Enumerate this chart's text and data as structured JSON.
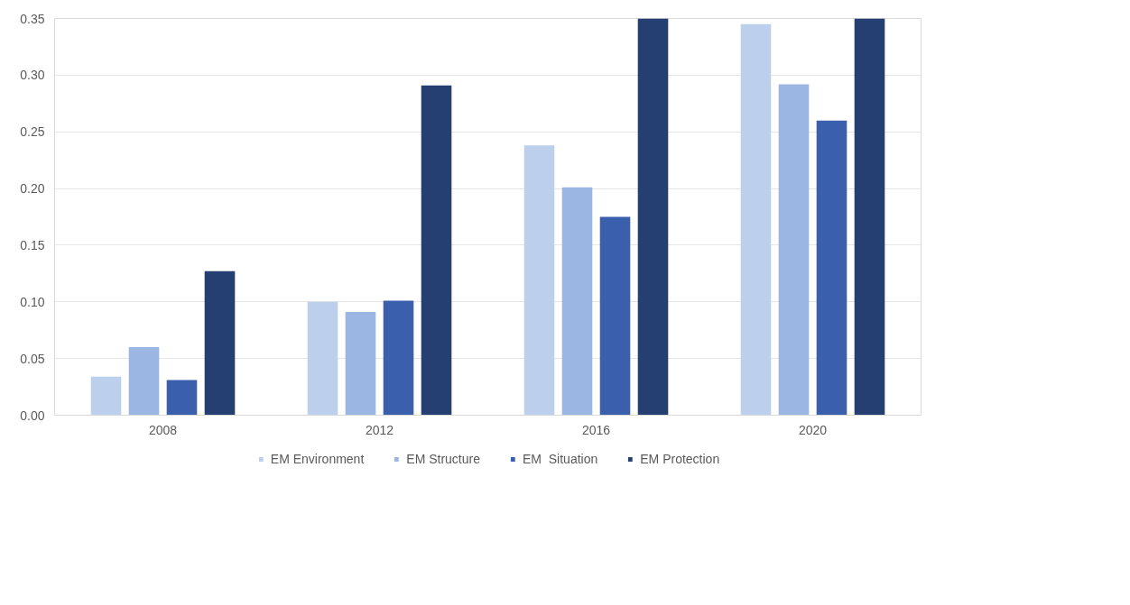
{
  "chart_data": {
    "type": "bar",
    "categories": [
      "2008",
      "2012",
      "2016",
      "2020"
    ],
    "series": [
      {
        "name": "EM Environment",
        "color": "#bccfec",
        "values": [
          0.034,
          0.1,
          0.238,
          0.345
        ]
      },
      {
        "name": "EM Structure",
        "color": "#9bb6e3",
        "values": [
          0.06,
          0.091,
          0.201,
          0.292
        ]
      },
      {
        "name": "EM  Situation",
        "color": "#3a5fad",
        "values": [
          0.031,
          0.101,
          0.175,
          0.26
        ]
      },
      {
        "name": "EM Protection",
        "color": "#253f73",
        "values": [
          0.127,
          0.291,
          0.35,
          0.35
        ]
      }
    ],
    "ylim": [
      0,
      0.35
    ],
    "yticks": [
      {
        "value": 0,
        "label": "0.00"
      },
      {
        "value": 0.05,
        "label": "0.05"
      },
      {
        "value": 0.1,
        "label": "0.10"
      },
      {
        "value": 0.15,
        "label": "0.15"
      },
      {
        "value": 0.2,
        "label": "0.20"
      },
      {
        "value": 0.25,
        "label": "0.25"
      },
      {
        "value": 0.3,
        "label": "0.30"
      },
      {
        "value": 0.35,
        "label": "0.35"
      }
    ],
    "grid": "y",
    "legend": "bottom"
  }
}
